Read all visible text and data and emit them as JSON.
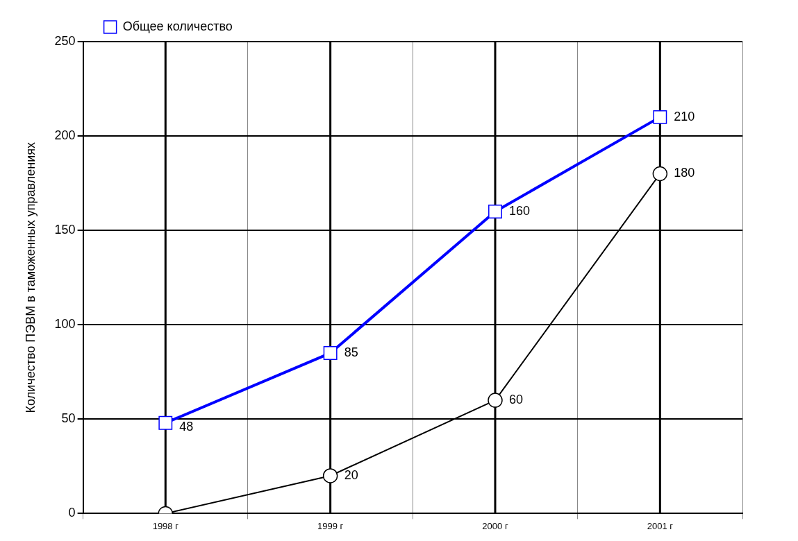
{
  "chart_data": {
    "type": "line",
    "ylabel": "Количество ПЭВМ в таможенных управлениях",
    "categories": [
      "1998 г",
      "1999 г",
      "2000 г",
      "2001 г"
    ],
    "series": [
      {
        "name": "Общее количество",
        "color": "#0000ff",
        "marker": "square",
        "values": [
          48,
          85,
          160,
          210
        ],
        "value_labels": [
          "48",
          "85",
          "160",
          "210"
        ]
      },
      {
        "color": "#000000",
        "marker": "circle",
        "values": [
          0,
          20,
          60,
          180
        ],
        "value_labels": [
          null,
          "20",
          "60",
          "180"
        ]
      }
    ],
    "ylim": [
      0,
      250
    ],
    "yticks": [
      0,
      50,
      100,
      150,
      200,
      250
    ],
    "grid": true,
    "legend": "top left"
  }
}
